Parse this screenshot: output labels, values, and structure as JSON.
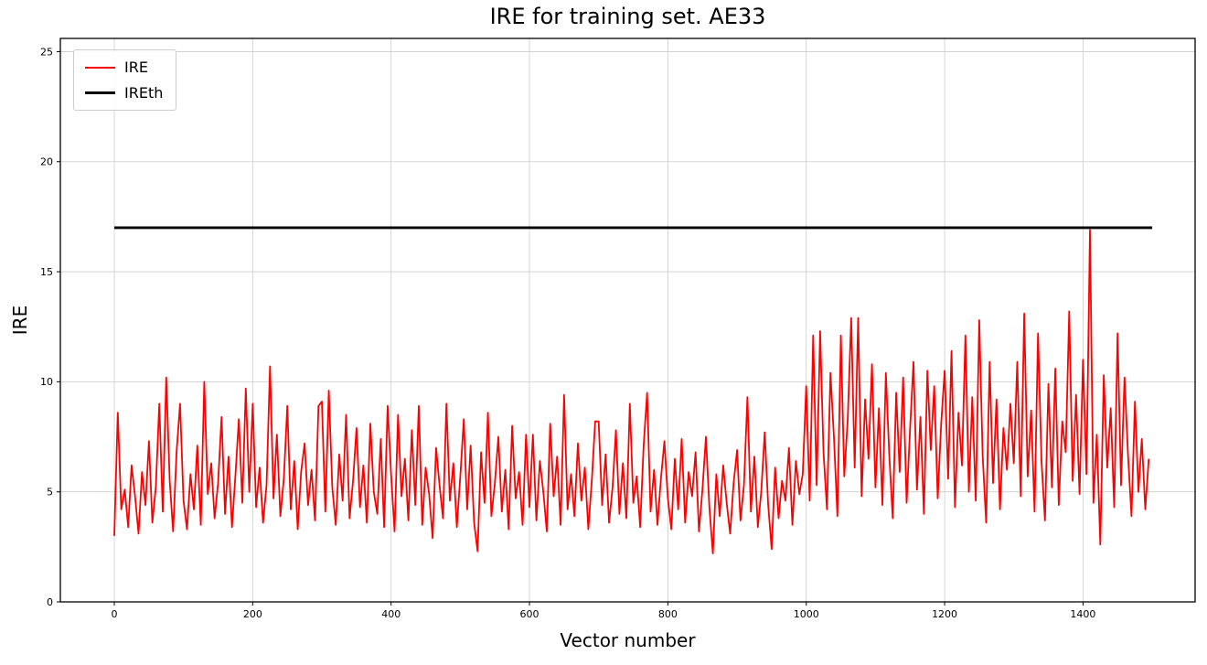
{
  "chart_data": {
    "type": "line",
    "title": "IRE for training set. AE33",
    "xlabel": "Vector number",
    "ylabel": "IRE",
    "xlim": [
      -78,
      1562
    ],
    "ylim": [
      0,
      25.6
    ],
    "xticks": [
      0,
      200,
      400,
      600,
      800,
      1000,
      1200,
      1400
    ],
    "yticks": [
      0,
      5,
      10,
      15,
      20,
      25
    ],
    "grid": true,
    "legend_position": "upper-left",
    "colors": {
      "grid": "#cccccc",
      "axis": "#000000",
      "background": "#ffffff",
      "legend_border": "#cccccc"
    },
    "series": [
      {
        "name": "IRE",
        "color": "#ff0000",
        "style": "line",
        "x_start": 0,
        "x_step": 5,
        "values": [
          3.0,
          8.6,
          4.2,
          5.1,
          3.4,
          6.2,
          4.8,
          3.1,
          5.9,
          4.4,
          7.3,
          3.6,
          5.2,
          9.0,
          4.1,
          10.2,
          5.5,
          3.2,
          6.8,
          9.0,
          4.6,
          3.3,
          5.8,
          4.2,
          7.1,
          3.5,
          10.0,
          4.9,
          6.3,
          3.8,
          5.4,
          8.4,
          4.0,
          6.6,
          3.4,
          5.7,
          8.3,
          4.5,
          9.7,
          5.0,
          9.0,
          4.3,
          6.1,
          3.6,
          5.3,
          10.7,
          4.7,
          7.6,
          3.9,
          5.6,
          8.9,
          4.2,
          6.4,
          3.3,
          5.9,
          7.2,
          4.4,
          6.0,
          3.7,
          8.9,
          9.1,
          4.1,
          9.6,
          5.2,
          3.5,
          6.7,
          4.6,
          8.5,
          3.8,
          5.5,
          7.9,
          4.3,
          6.2,
          3.6,
          8.1,
          5.0,
          4.0,
          7.4,
          3.4,
          8.9,
          5.8,
          3.2,
          8.5,
          4.8,
          6.5,
          3.7,
          7.8,
          4.4,
          8.9,
          3.5,
          6.1,
          4.9,
          2.9,
          7.0,
          5.3,
          3.8,
          9.0,
          4.6,
          6.3,
          3.4,
          5.7,
          8.3,
          4.2,
          7.1,
          3.6,
          2.3,
          6.8,
          4.5,
          8.6,
          3.9,
          5.4,
          7.5,
          4.1,
          6.0,
          3.3,
          8.0,
          4.7,
          5.9,
          3.5,
          7.6,
          4.3,
          7.6,
          3.7,
          6.4,
          5.0,
          3.2,
          8.1,
          4.8,
          6.6,
          3.5,
          9.4,
          4.2,
          5.8,
          3.9,
          7.2,
          4.6,
          6.1,
          3.3,
          5.5,
          8.2,
          8.2,
          4.4,
          6.7,
          3.6,
          5.2,
          7.8,
          4.0,
          6.3,
          3.8,
          9.0,
          4.5,
          5.7,
          3.4,
          7.1,
          9.5,
          4.1,
          6.0,
          3.5,
          5.6,
          7.3,
          4.7,
          3.3,
          6.5,
          4.2,
          7.4,
          3.6,
          5.9,
          4.8,
          6.8,
          3.2,
          5.1,
          7.5,
          4.3,
          2.2,
          5.8,
          3.9,
          6.2,
          4.5,
          3.1,
          5.4,
          6.9,
          3.7,
          5.3,
          9.3,
          4.1,
          6.6,
          3.4,
          5.0,
          7.7,
          4.4,
          2.4,
          6.1,
          3.8,
          5.5,
          4.6,
          7.0,
          3.5,
          6.4,
          4.9,
          5.8,
          9.8,
          4.6,
          12.1,
          5.3,
          12.3,
          6.8,
          4.2,
          10.4,
          7.5,
          3.9,
          12.1,
          5.7,
          8.3,
          12.9,
          6.1,
          12.9,
          4.8,
          9.2,
          6.5,
          10.8,
          5.2,
          8.8,
          4.4,
          10.4,
          6.7,
          3.8,
          9.5,
          5.9,
          10.2,
          4.5,
          7.8,
          10.9,
          5.1,
          8.4,
          4.0,
          10.5,
          6.9,
          9.8,
          4.7,
          8.1,
          10.5,
          5.6,
          11.4,
          4.3,
          8.6,
          6.2,
          12.1,
          5.0,
          9.3,
          4.6,
          12.8,
          6.6,
          3.6,
          10.9,
          5.4,
          9.2,
          4.2,
          7.9,
          6.0,
          9.0,
          6.3,
          10.9,
          4.8,
          13.1,
          5.7,
          8.7,
          4.1,
          12.2,
          6.4,
          3.7,
          9.9,
          5.2,
          10.6,
          4.4,
          8.2,
          6.8,
          13.2,
          5.5,
          9.4,
          4.9,
          11.0,
          5.8,
          16.9,
          4.5,
          7.6,
          2.6,
          10.3,
          6.1,
          8.8,
          4.3,
          12.2,
          5.3,
          10.2,
          6.7,
          3.9,
          9.1,
          5.0,
          7.4,
          4.2,
          6.5
        ]
      },
      {
        "name": "IREth",
        "color": "#000000",
        "style": "hline",
        "y": 17.0,
        "x_start": 0,
        "x_end": 1500
      }
    ]
  }
}
